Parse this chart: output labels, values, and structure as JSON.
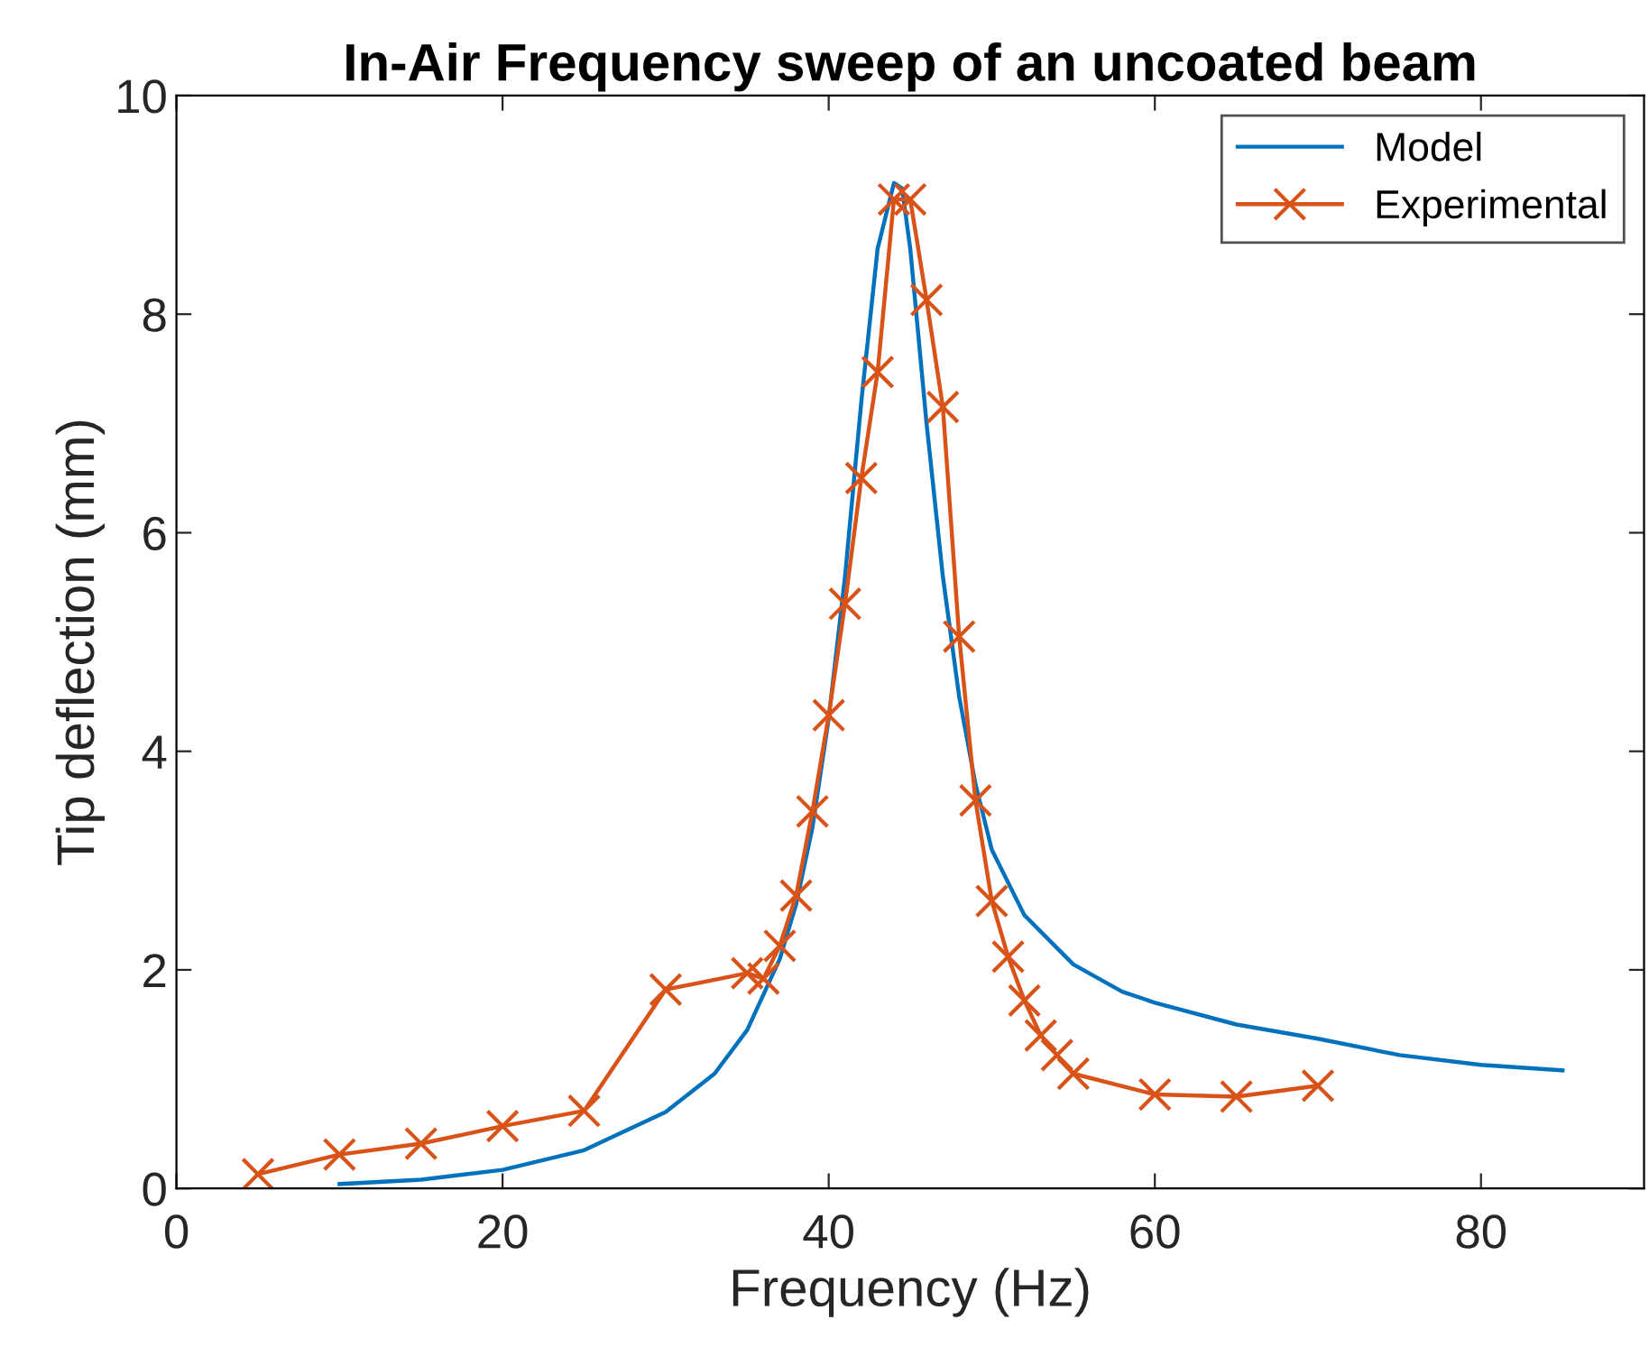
{
  "chart_data": {
    "type": "line",
    "title": "In-Air Frequency sweep of an uncoated beam",
    "xlabel": "Frequency (Hz)",
    "ylabel": "Tip deflection (mm)",
    "series": [
      {
        "name": "Model",
        "color": "#0072bd",
        "marker": "none",
        "x": [
          10,
          15,
          20,
          25,
          30,
          33,
          35,
          37,
          38,
          39,
          40,
          41,
          42,
          43,
          44,
          44.5,
          45,
          46,
          47,
          48,
          49,
          50,
          52,
          55,
          58,
          60,
          65,
          70,
          75,
          80,
          85
        ],
        "values": [
          0.04,
          0.08,
          0.17,
          0.35,
          0.7,
          1.05,
          1.45,
          2.1,
          2.6,
          3.3,
          4.3,
          5.6,
          7.2,
          8.6,
          9.2,
          9.15,
          8.6,
          7.0,
          5.6,
          4.5,
          3.7,
          3.1,
          2.5,
          2.05,
          1.8,
          1.7,
          1.5,
          1.37,
          1.22,
          1.13,
          1.08
        ]
      },
      {
        "name": "Experimental",
        "color": "#d95319",
        "marker": "cross",
        "x": [
          5,
          10,
          15,
          20,
          25,
          30,
          35,
          36,
          37,
          38,
          39,
          40,
          41,
          42,
          43,
          44,
          45,
          46,
          47,
          48,
          49,
          50,
          51,
          52,
          53,
          54,
          55,
          60,
          65,
          70
        ],
        "values": [
          0.13,
          0.31,
          0.41,
          0.57,
          0.71,
          1.82,
          1.97,
          1.92,
          2.22,
          2.68,
          3.45,
          4.33,
          5.35,
          6.5,
          7.47,
          9.05,
          9.05,
          8.13,
          7.15,
          5.05,
          3.55,
          2.63,
          2.12,
          1.72,
          1.4,
          1.22,
          1.05,
          0.86,
          0.84,
          0.94
        ]
      }
    ],
    "xlim": [
      0,
      90
    ],
    "ylim": [
      0,
      10
    ],
    "xticks": [
      0,
      20,
      40,
      60,
      80
    ],
    "yticks": [
      0,
      2,
      4,
      6,
      8,
      10
    ],
    "grid": false,
    "legend": "top right",
    "line_style": "solid"
  }
}
